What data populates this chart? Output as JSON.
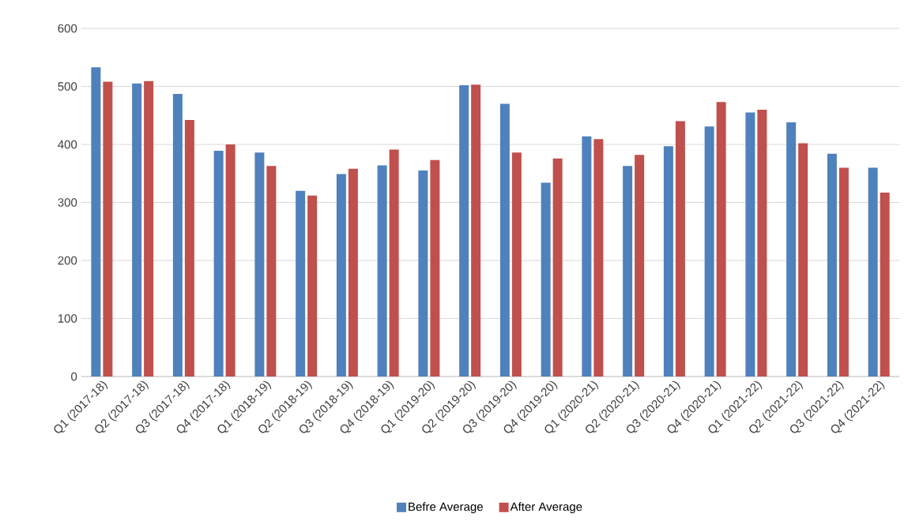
{
  "chart_data": {
    "type": "bar",
    "categories": [
      "Q1 (2017-18)",
      "Q2 (2017-18)",
      "Q3 (2017-18)",
      "Q4 (2017-18)",
      "Q1 (2018-19)",
      "Q2 (2018-19)",
      "Q3 (2018-19)",
      "Q4 (2018-19)",
      "Q1 (2019-20)",
      "Q2 (2019-20)",
      "Q3 (2019-20)",
      "Q4 (2019-20)",
      "Q1 (2020-21)",
      "Q2 (2020-21)",
      "Q3 (2020-21)",
      "Q4 (2020-21)",
      "Q1 (2021-22)",
      "Q2 (2021-22)",
      "Q3 (2021-22)",
      "Q4 (2021-22)"
    ],
    "series": [
      {
        "name": "Befre Average",
        "color": "#4f81bd",
        "values": [
          533,
          505,
          487,
          389,
          386,
          320,
          349,
          364,
          355,
          502,
          470,
          334,
          414,
          363,
          397,
          431,
          455,
          438,
          384,
          360
        ]
      },
      {
        "name": "After Average",
        "color": "#c0504d",
        "values": [
          508,
          509,
          442,
          400,
          363,
          312,
          358,
          391,
          373,
          503,
          386,
          376,
          409,
          382,
          440,
          473,
          460,
          402,
          360,
          317
        ]
      }
    ],
    "ylim": [
      0,
      600
    ],
    "yticks": [
      0,
      100,
      200,
      300,
      400,
      500,
      600
    ],
    "grid": "y",
    "legend": "bottom"
  }
}
